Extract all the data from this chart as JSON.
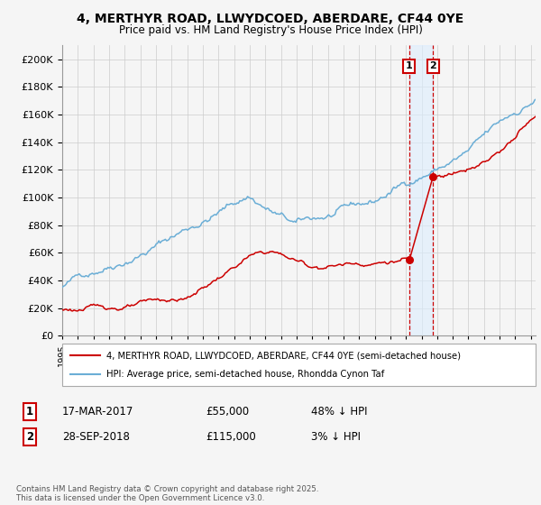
{
  "title": "4, MERTHYR ROAD, LLWYDCOED, ABERDARE, CF44 0YE",
  "subtitle": "Price paid vs. HM Land Registry's House Price Index (HPI)",
  "legend_label_red": "4, MERTHYR ROAD, LLWYDCOED, ABERDARE, CF44 0YE (semi-detached house)",
  "legend_label_blue": "HPI: Average price, semi-detached house, Rhondda Cynon Taf",
  "transaction1_label": "1",
  "transaction1_date": "17-MAR-2017",
  "transaction1_price": "£55,000",
  "transaction1_pct": "48% ↓ HPI",
  "transaction2_label": "2",
  "transaction2_date": "28-SEP-2018",
  "transaction2_price": "£115,000",
  "transaction2_pct": "3% ↓ HPI",
  "footnote": "Contains HM Land Registry data © Crown copyright and database right 2025.\nThis data is licensed under the Open Government Licence v3.0.",
  "ylim": [
    0,
    210000
  ],
  "yticks": [
    0,
    20000,
    40000,
    60000,
    80000,
    100000,
    120000,
    140000,
    160000,
    180000,
    200000
  ],
  "hpi_color": "#6baed6",
  "price_color": "#cc0000",
  "background_color": "#f5f5f5",
  "grid_color": "#cccccc",
  "marker_color": "#cc0000",
  "vline_color_dashed": "#cc0000",
  "vline_color_fill": "#ddeeff",
  "year_start": 1995,
  "year_end": 2025,
  "t1_year": 2017.205,
  "t2_year": 2018.745,
  "t1_price": 55000,
  "t2_price": 115000
}
